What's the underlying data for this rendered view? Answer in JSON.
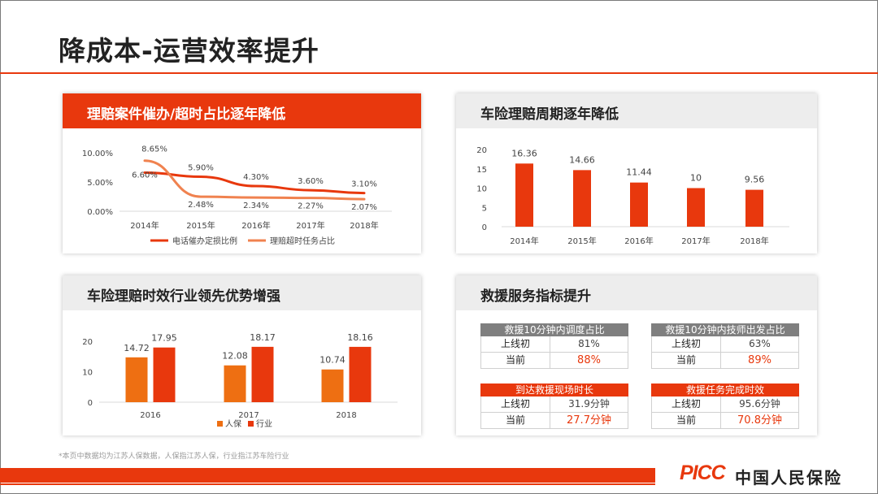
{
  "page": {
    "title": "降成本-运营效率提升",
    "footnote": "*本页中数据均为江苏人保数据，人保指江苏人保，行业指江苏车险行业",
    "logo_mark": "PICC",
    "logo_text": "中国人民保险",
    "colors": {
      "accent": "#e8380d",
      "secondary": "#f0824f",
      "header_grey": "#ededed",
      "table_head_grey": "#7f7f7f",
      "orange_bar": "#ee6f12"
    }
  },
  "cards": {
    "timeout": {
      "title": "理赔案件催办/超时占比逐年降低"
    },
    "cycle": {
      "title": "车险理赔周期逐年降低"
    },
    "compare": {
      "title": "车险理赔时效行业领先优势增强"
    },
    "rescue": {
      "title": "救援服务指标提升"
    }
  },
  "chart_data": [
    {
      "type": "line",
      "title": "理赔案件催办/超时占比逐年降低",
      "categories": [
        "2014年",
        "2015年",
        "2016年",
        "2017年",
        "2018年"
      ],
      "ylim": [
        0,
        10
      ],
      "yticks": [
        "0.00%",
        "5.00%",
        "10.00%"
      ],
      "grid": false,
      "legend_position": "bottom",
      "series": [
        {
          "name": "电话催办定损比例",
          "color": "#e8380d",
          "values": [
            6.6,
            5.9,
            4.3,
            3.6,
            3.1
          ],
          "labels": [
            "6.60%",
            "5.90%",
            "4.30%",
            "3.60%",
            "3.10%"
          ]
        },
        {
          "name": "理赔超时任务占比",
          "color": "#f0824f",
          "values": [
            8.65,
            2.48,
            2.34,
            2.27,
            2.07
          ],
          "labels": [
            "8.65%",
            "2.48%",
            "2.34%",
            "2.27%",
            "2.07%"
          ]
        }
      ]
    },
    {
      "type": "bar",
      "title": "车险理赔周期逐年降低",
      "categories": [
        "2014年",
        "2015年",
        "2016年",
        "2017年",
        "2018年"
      ],
      "values": [
        16.36,
        14.66,
        11.44,
        10,
        9.56
      ],
      "labels": [
        "16.36",
        "14.66",
        "11.44",
        "10",
        "9.56"
      ],
      "ylim": [
        0,
        20
      ],
      "yticks": [
        "0",
        "5",
        "10",
        "15",
        "20"
      ],
      "grid": false,
      "color": "#e8380d"
    },
    {
      "type": "bar",
      "title": "车险理赔时效行业领先优势增强",
      "categories": [
        "2016",
        "2017",
        "2018"
      ],
      "ylim": [
        0,
        20
      ],
      "yticks": [
        "0",
        "10",
        "20"
      ],
      "grid": false,
      "legend_position": "bottom",
      "series": [
        {
          "name": "人保",
          "color": "#ee6f12",
          "values": [
            14.72,
            12.08,
            10.74
          ],
          "labels": [
            "14.72",
            "12.08",
            "10.74"
          ]
        },
        {
          "name": "行业",
          "color": "#e8380d",
          "values": [
            17.95,
            18.17,
            18.16
          ],
          "labels": [
            "17.95",
            "18.17",
            "18.16"
          ]
        }
      ]
    }
  ],
  "rescue_tables": [
    {
      "title": "救援10分钟内调度占比",
      "head_color": "grey",
      "rows": [
        {
          "label": "上线初",
          "value": "81%"
        },
        {
          "label": "当前",
          "value": "88%"
        }
      ]
    },
    {
      "title": "救援10分钟内技师出发占比",
      "head_color": "grey",
      "rows": [
        {
          "label": "上线初",
          "value": "63%"
        },
        {
          "label": "当前",
          "value": "89%"
        }
      ]
    },
    {
      "title": "到达救援现场时长",
      "head_color": "red",
      "rows": [
        {
          "label": "上线初",
          "value": "31.9分钟"
        },
        {
          "label": "当前",
          "value": "27.7分钟"
        }
      ]
    },
    {
      "title": "救援任务完成时效",
      "head_color": "red",
      "rows": [
        {
          "label": "上线初",
          "value": "95.6分钟"
        },
        {
          "label": "当前",
          "value": "70.8分钟"
        }
      ]
    }
  ]
}
